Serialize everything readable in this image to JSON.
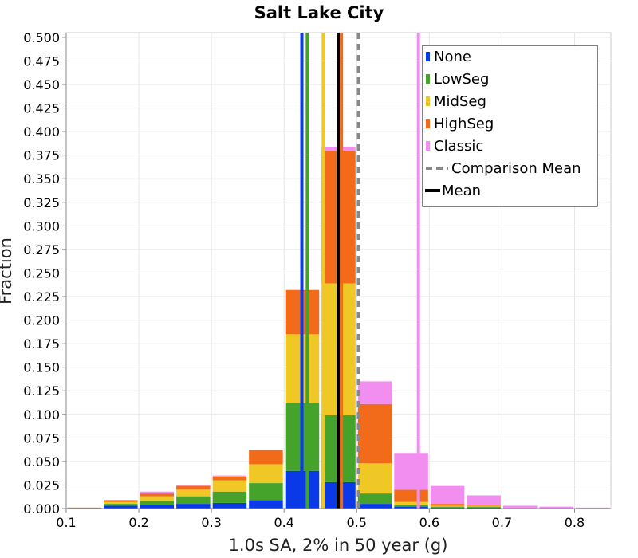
{
  "chart_data": {
    "type": "bar",
    "title": "Salt Lake City",
    "xlabel": "1.0s SA, 2% in 50 year (g)",
    "ylabel": "Fraction",
    "xlim": [
      0.1,
      0.85
    ],
    "ylim": [
      0,
      0.505
    ],
    "x_ticks": [
      0.1,
      0.2,
      0.3,
      0.4,
      0.5,
      0.6,
      0.7,
      0.8
    ],
    "x_tick_labels": [
      "0.1",
      "0.2",
      "0.3",
      "0.4",
      "0.5",
      "0.6",
      "0.7",
      "0.8"
    ],
    "y_ticks": [
      0,
      0.025,
      0.05,
      0.075,
      0.1,
      0.125,
      0.15,
      0.175,
      0.2,
      0.225,
      0.25,
      0.275,
      0.3,
      0.325,
      0.35,
      0.375,
      0.4,
      0.425,
      0.45,
      0.475,
      0.5
    ],
    "y_tick_labels": [
      "0.000",
      "0.025",
      "0.050",
      "0.075",
      "0.100",
      "0.125",
      "0.150",
      "0.175",
      "0.200",
      "0.225",
      "0.250",
      "0.275",
      "0.300",
      "0.325",
      "0.350",
      "0.375",
      "0.400",
      "0.425",
      "0.450",
      "0.475",
      "0.500"
    ],
    "grid": true,
    "stacked": true,
    "bin_width": 0.05,
    "bin_centers": [
      0.125,
      0.175,
      0.225,
      0.275,
      0.325,
      0.375,
      0.425,
      0.475,
      0.525,
      0.575,
      0.625,
      0.675,
      0.725,
      0.775,
      0.825
    ],
    "series": [
      {
        "name": "None",
        "color": "#0a3ae8",
        "values": [
          0.0,
          0.003,
          0.004,
          0.005,
          0.006,
          0.009,
          0.04,
          0.028,
          0.005,
          0.002,
          0.001,
          0.001,
          0.0,
          0.0,
          0.0
        ]
      },
      {
        "name": "LowSeg",
        "color": "#45a22a",
        "values": [
          0.0,
          0.002,
          0.004,
          0.008,
          0.012,
          0.018,
          0.072,
          0.071,
          0.011,
          0.002,
          0.001,
          0.001,
          0.0,
          0.0,
          0.0
        ]
      },
      {
        "name": "MidSeg",
        "color": "#f0c825",
        "values": [
          0.0,
          0.002,
          0.005,
          0.007,
          0.012,
          0.02,
          0.073,
          0.14,
          0.032,
          0.003,
          0.001,
          0.001,
          0.0,
          0.0,
          0.0
        ]
      },
      {
        "name": "HighSeg",
        "color": "#f26b1a",
        "values": [
          0.001,
          0.002,
          0.003,
          0.004,
          0.004,
          0.015,
          0.047,
          0.141,
          0.063,
          0.013,
          0.002,
          0.001,
          0.0,
          0.0,
          0.0
        ]
      },
      {
        "name": "Classic",
        "color": "#f28ef0",
        "values": [
          0.0,
          0.0,
          0.002,
          0.001,
          0.001,
          0.0,
          0.0,
          0.004,
          0.024,
          0.039,
          0.019,
          0.01,
          0.003,
          0.002,
          0.001
        ]
      }
    ],
    "vertical_lines": [
      {
        "name": "None mean",
        "x": 0.4245,
        "color": "#0a3ae8",
        "style": "solid"
      },
      {
        "name": "LowSeg mean",
        "x": 0.432,
        "color": "#45a22a",
        "style": "solid"
      },
      {
        "name": "MidSeg mean",
        "x": 0.454,
        "color": "#f0c825",
        "style": "solid"
      },
      {
        "name": "HighSeg mean",
        "x": 0.479,
        "color": "#f26b1a",
        "style": "solid"
      },
      {
        "name": "Classic mean",
        "x": 0.585,
        "color": "#f28ef0",
        "style": "solid"
      },
      {
        "name": "Comparison Mean",
        "x": 0.5025,
        "color": "#888888",
        "style": "dashed"
      },
      {
        "name": "Mean",
        "x": 0.4745,
        "color": "#000000",
        "style": "solid"
      }
    ],
    "legend": {
      "placement": "top-right",
      "entries": [
        {
          "label": "None",
          "color": "#0a3ae8",
          "kind": "bar"
        },
        {
          "label": "LowSeg",
          "color": "#45a22a",
          "kind": "bar"
        },
        {
          "label": "MidSeg",
          "color": "#f0c825",
          "kind": "bar"
        },
        {
          "label": "HighSeg",
          "color": "#f26b1a",
          "kind": "bar"
        },
        {
          "label": "Classic",
          "color": "#f28ef0",
          "kind": "bar"
        },
        {
          "label": "Comparison Mean",
          "color": "#888888",
          "kind": "dashed-line"
        },
        {
          "label": "Mean",
          "color": "#000000",
          "kind": "line"
        }
      ]
    }
  }
}
